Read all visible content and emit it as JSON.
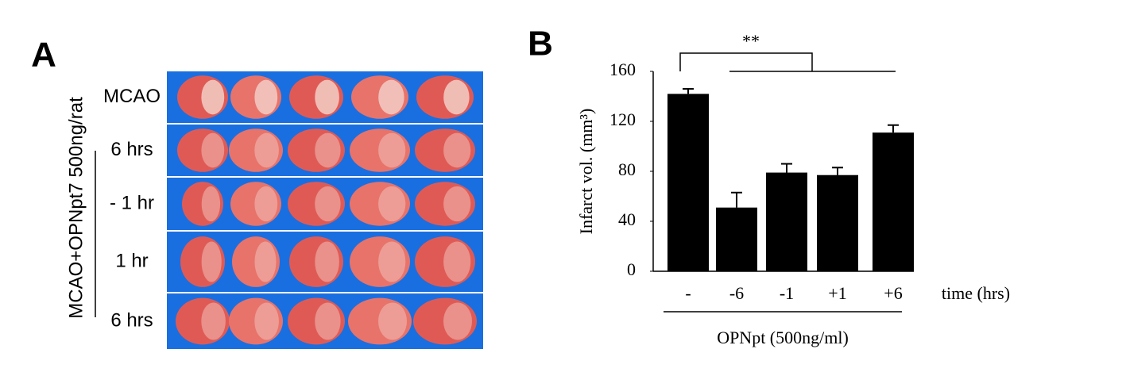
{
  "panel_a": {
    "label": "A",
    "row_labels": [
      "MCAO",
      "6 hrs",
      "- 1 hr",
      "1 hr",
      "6 hrs"
    ],
    "group_label": "MCAO+OPNpt7 500ng/rat"
  },
  "chart_data": {
    "type": "bar",
    "panel_label": "B",
    "y_label": "Infarct vol. (mm³)",
    "categories": [
      "-",
      "-6",
      "-1",
      "+1",
      "+6"
    ],
    "values": [
      142,
      51,
      79,
      77,
      111
    ],
    "errors": [
      4,
      12,
      7,
      6,
      6
    ],
    "color": "#000000",
    "ylim": [
      0,
      160
    ],
    "yticks": [
      0,
      40,
      80,
      120,
      160
    ],
    "x_label": "time (hrs)",
    "group_label": "OPNpt (500ng/ml)",
    "annotation": "**"
  }
}
